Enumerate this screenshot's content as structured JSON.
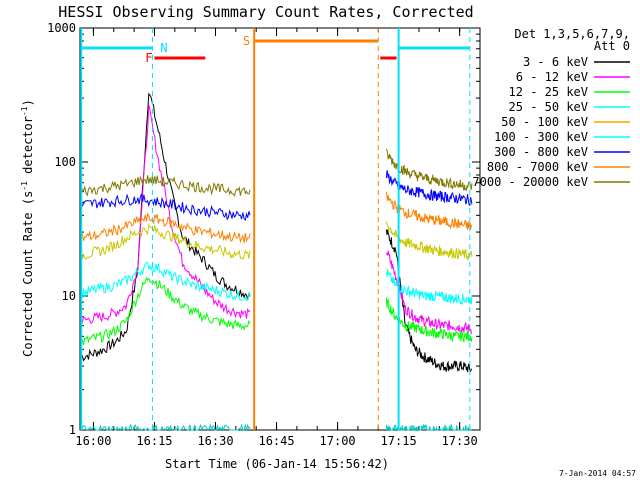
{
  "chart_data": {
    "type": "line",
    "title": "HESSI Observing Summary Count Rates, Corrected",
    "xlabel": "Start Time (06-Jan-14 15:56:42)",
    "ylabel_prefix": "Corrected Count Rate (s",
    "ylabel_sup": "-1",
    "ylabel_mid": " detector",
    "ylabel_sup2": "-1",
    "ylabel_suffix": ")",
    "footer": "7-Jan-2014 04:57",
    "y_scale": "log",
    "xlim": [
      "15:56:42",
      "17:35:00"
    ],
    "ylim": [
      1,
      1000
    ],
    "x_ticks": [
      "16:00",
      "16:15",
      "16:30",
      "16:45",
      "17:00",
      "17:15",
      "17:30"
    ],
    "y_ticks": [
      "1",
      "10",
      "100",
      "1000"
    ],
    "legend_header": [
      "Det 1,3,5,6,7,9,",
      "Att 0"
    ],
    "legend_position": "right",
    "gaps": [
      [
        "16:38:30",
        "17:12:00"
      ]
    ],
    "series": [
      {
        "name": "3 - 6 keV",
        "color": "#000000",
        "pre": [
          3.5,
          3.7,
          4.0,
          4.5,
          5.5,
          15,
          350,
          150,
          60,
          28,
          22,
          18,
          14,
          12,
          11,
          10
        ],
        "post": [
          30,
          22,
          6,
          4,
          3.5,
          3.2,
          3.0,
          3.0,
          3.0,
          2.8
        ]
      },
      {
        "name": "6 - 12 keV",
        "color": "#ff00ff",
        "pre": [
          6.5,
          6.8,
          7.0,
          7.5,
          8.5,
          16,
          250,
          90,
          35,
          18,
          14,
          11,
          9,
          8,
          7.5,
          7.2
        ],
        "post": [
          22,
          14,
          8,
          7,
          6.5,
          6.2,
          6.0,
          6.0,
          5.8,
          5.7
        ]
      },
      {
        "name": "12 - 25 keV",
        "color": "#00ff00",
        "pre": [
          4.5,
          4.8,
          5.0,
          5.5,
          6.5,
          10,
          14,
          12,
          10,
          8.5,
          7.5,
          7.0,
          6.5,
          6.2,
          6.0,
          6.0
        ],
        "post": [
          9,
          7,
          6,
          5.8,
          5.5,
          5.3,
          5.2,
          5.0,
          5.0,
          5.0
        ]
      },
      {
        "name": "25 - 50 keV",
        "color": "#00ffff",
        "pre": [
          10.5,
          11,
          11.5,
          12,
          13,
          15,
          17,
          16,
          14,
          13,
          12,
          11.5,
          11,
          10.5,
          10,
          10
        ],
        "post": [
          15,
          12,
          11,
          10.5,
          10,
          10,
          9.8,
          9.6,
          9.5,
          9.5
        ]
      },
      {
        "name": "50 - 100 keV",
        "color": "#c8c800",
        "pre": [
          20,
          21,
          22,
          24,
          27,
          30,
          32,
          30,
          28,
          26,
          24,
          23,
          22,
          21,
          20.5,
          20
        ],
        "post": [
          35,
          28,
          25,
          24,
          23,
          22,
          21.5,
          21,
          20.5,
          20
        ]
      },
      {
        "name": "100 - 300 keV",
        "color": "#00c8c8",
        "pre": [
          1,
          1,
          1,
          1,
          1,
          1,
          1,
          1,
          1,
          1,
          1,
          1,
          1,
          1,
          1,
          1
        ],
        "post": [
          1,
          1,
          1,
          1,
          1,
          1,
          1,
          1,
          1,
          1
        ]
      },
      {
        "name": "300 - 800 keV",
        "color": "#0000ff",
        "pre": [
          48,
          49,
          50,
          51,
          52,
          53,
          52,
          50,
          48,
          46,
          44,
          43,
          42,
          41,
          40,
          40
        ],
        "post": [
          80,
          68,
          62,
          60,
          58,
          56,
          55,
          54,
          53,
          52
        ]
      },
      {
        "name": "800 - 7000 keV",
        "color": "#ff8000",
        "pre": [
          27,
          28,
          29,
          31,
          33,
          36,
          38,
          37,
          35,
          33,
          31,
          30,
          29,
          28,
          27,
          27
        ],
        "post": [
          55,
          46,
          42,
          40,
          38,
          37,
          36,
          35,
          34,
          33
        ]
      },
      {
        "name": "7000 - 20000 keV",
        "color": "#807800",
        "pre": [
          60,
          62,
          64,
          66,
          68,
          72,
          74,
          72,
          70,
          68,
          66,
          64,
          63,
          62,
          61,
          60
        ],
        "post": [
          115,
          95,
          85,
          80,
          76,
          73,
          71,
          69,
          67,
          66
        ]
      }
    ],
    "legend_colors_override": {
      "50 - 100 keV": "#ffa000",
      "100 - 300 keV": "#00ffff"
    },
    "bars": [
      {
        "label": "N",
        "color": "#00e0ff",
        "level": "top",
        "segments": [
          [
            "15:57:00",
            "16:14:30"
          ],
          [
            "17:15:00",
            "17:32:30"
          ]
        ]
      },
      {
        "label": "F",
        "color": "#ff0000",
        "level": "middle",
        "segments": [
          [
            "16:15:00",
            "16:27:30"
          ],
          [
            "17:10:30",
            "17:14:30"
          ]
        ]
      },
      {
        "label": "S",
        "color": "#ff8000",
        "level": "upper",
        "segments": [
          [
            "16:39:30",
            "17:10:00"
          ]
        ]
      }
    ],
    "vlines": [
      {
        "time": "16:14:30",
        "color": "#00e0ff",
        "style": "dashed"
      },
      {
        "time": "16:39:30",
        "color": "#ff8000",
        "style": "solid"
      },
      {
        "time": "17:10:00",
        "color": "#ff8000",
        "style": "dashed"
      },
      {
        "time": "17:15:00",
        "color": "#00e0ff",
        "style": "solid"
      },
      {
        "time": "17:32:30",
        "color": "#00e0ff",
        "style": "dashed"
      },
      {
        "time": "15:57:00",
        "color": "#00e0ff",
        "style": "solid"
      }
    ]
  }
}
